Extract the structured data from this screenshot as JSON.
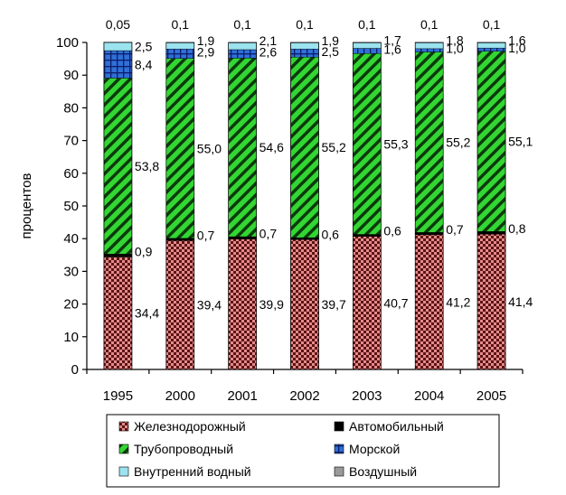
{
  "chart_data": {
    "type": "bar",
    "stacked": true,
    "percent": true,
    "ylabel": "процентов",
    "ylim": [
      0,
      100
    ],
    "yticks": [
      0,
      10,
      20,
      30,
      40,
      50,
      60,
      70,
      80,
      90,
      100
    ],
    "categories": [
      "1995",
      "2000",
      "2001",
      "2002",
      "2003",
      "2004",
      "2005"
    ],
    "series": [
      {
        "name": "Железнодорожный",
        "key": "rail",
        "values": [
          34.4,
          39.4,
          39.9,
          39.7,
          40.7,
          41.2,
          41.4
        ],
        "color": "#e58a8a"
      },
      {
        "name": "Автомобильный",
        "key": "road",
        "values": [
          0.9,
          0.7,
          0.7,
          0.6,
          0.6,
          0.7,
          0.8
        ],
        "color": "#000000"
      },
      {
        "name": "Трубопроводный",
        "key": "pipe",
        "values": [
          53.8,
          55.0,
          54.6,
          55.2,
          55.3,
          55.2,
          55.1
        ],
        "color": "#33d633"
      },
      {
        "name": "Морской",
        "key": "sea",
        "values": [
          8.4,
          2.9,
          2.6,
          2.5,
          1.6,
          1.0,
          1.0
        ],
        "color": "#2f6fd6"
      },
      {
        "name": "Внутренний водный",
        "key": "inland",
        "values": [
          2.5,
          1.9,
          2.1,
          1.9,
          1.7,
          1.8,
          1.6
        ],
        "color": "#9be3ef"
      },
      {
        "name": "Воздушный",
        "key": "air",
        "values": [
          0.05,
          0.1,
          0.1,
          0.1,
          0.1,
          0.1,
          0.1
        ],
        "color": "#9a9a9a"
      }
    ],
    "data_labels": {
      "rail": [
        "34,4",
        "39,4",
        "39,9",
        "39,7",
        "40,7",
        "41,2",
        "41,4"
      ],
      "road": [
        "0,9",
        "0,7",
        "0,7",
        "0,6",
        "0,6",
        "0,7",
        "0,8"
      ],
      "pipe": [
        "53,8",
        "55,0",
        "54,6",
        "55,2",
        "55,3",
        "55,2",
        "55,1"
      ],
      "sea": [
        "8,4",
        "2,9",
        "2,6",
        "2,5",
        "1,6",
        "1,0",
        "1,0"
      ],
      "inland": [
        "2,5",
        "1,9",
        "2,1",
        "1,9",
        "1,7",
        "1,8",
        "1,6"
      ],
      "air": [
        "0,05",
        "0,1",
        "0,1",
        "0,1",
        "0,1",
        "0,1",
        "0,1"
      ]
    },
    "legend": {
      "placement": "bottom",
      "columns": 2,
      "order": [
        "rail",
        "road",
        "pipe",
        "sea",
        "inland",
        "air"
      ]
    },
    "grid": false
  }
}
